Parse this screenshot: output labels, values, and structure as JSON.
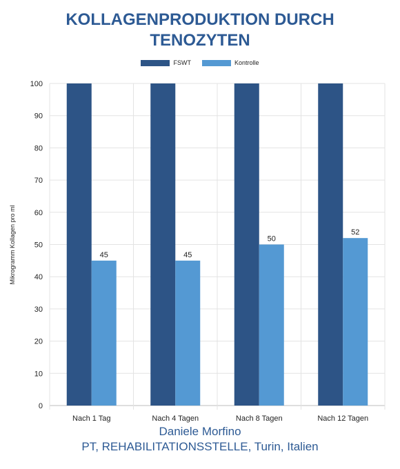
{
  "chart_data": {
    "type": "bar",
    "title_lines": [
      "KOLLAGENPRODUKTION DURCH",
      "TENOZYTEN"
    ],
    "categories": [
      "Nach 1 Tag",
      "Nach 4 Tagen",
      "Nach 8 Tagen",
      "Nach 12 Tagen"
    ],
    "series": [
      {
        "name": "FSWT",
        "values": [
          100,
          100,
          100,
          100
        ],
        "color": "#2d5486",
        "show_labels": false
      },
      {
        "name": "Kontrolle",
        "values": [
          45,
          45,
          50,
          52
        ],
        "color": "#5499d3",
        "show_labels": true
      }
    ],
    "ylabel": "Mikrogramm Kollagen pro ml",
    "xlabel": "",
    "ylim": [
      0,
      100
    ],
    "yticks": [
      0,
      10,
      20,
      30,
      40,
      50,
      60,
      70,
      80,
      90,
      100
    ],
    "grid": true,
    "legend_position": "top-center"
  },
  "footer": {
    "line1": "Daniele Morfino",
    "line2": "PT, REHABILITATIONSSTELLE, Turin, Italien"
  }
}
